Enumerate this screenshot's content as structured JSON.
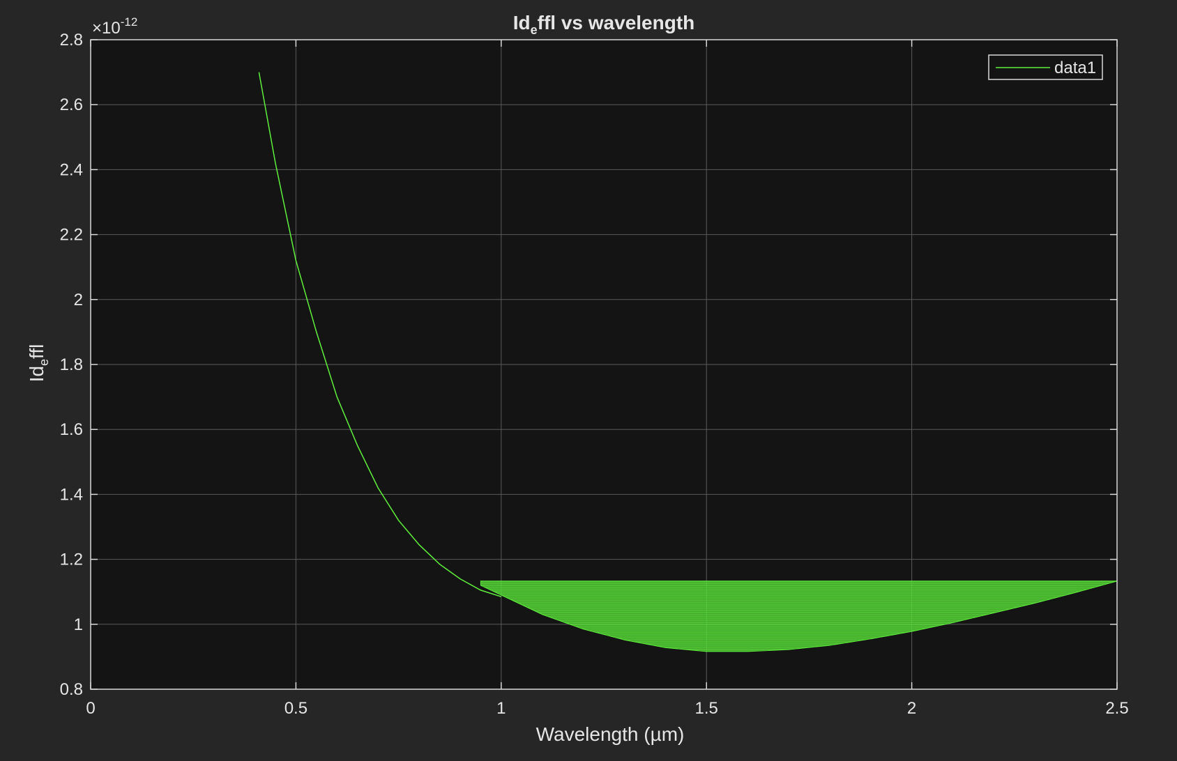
{
  "chart_data": {
    "type": "line",
    "title": {
      "pre": "Id",
      "sub": "e",
      "post": "ffl  vs  wavelength"
    },
    "xlabel": "Wavelength (µm)",
    "ylabel": {
      "pre": "Id",
      "sub": "e",
      "post": "ffl"
    },
    "exponent": {
      "base": "×10",
      "power": "-12"
    },
    "xlim": [
      0,
      2.5
    ],
    "ylim": [
      0.8,
      2.8
    ],
    "xticks": [
      "0",
      "0.5",
      "1",
      "1.5",
      "2",
      "2.5"
    ],
    "yticks": [
      "0.8",
      "1",
      "1.2",
      "1.4",
      "1.6",
      "1.8",
      "2",
      "2.2",
      "2.4",
      "2.6",
      "2.8"
    ],
    "grid": true,
    "legend": {
      "position": "top-right",
      "entries": [
        "data1"
      ]
    },
    "colors": {
      "line": "#5ff03c",
      "background": "#141414",
      "figure": "#262626",
      "axes": "#d9d9d9",
      "grid": "#5a5a5a"
    },
    "series": [
      {
        "name": "data1",
        "curve": {
          "x": [
            0.41,
            0.45,
            0.5,
            0.55,
            0.6,
            0.65,
            0.7,
            0.75,
            0.8,
            0.85,
            0.9,
            0.95,
            1.0
          ],
          "y": [
            2.7,
            2.42,
            2.12,
            1.9,
            1.7,
            1.55,
            1.42,
            1.32,
            1.245,
            1.185,
            1.14,
            1.105,
            1.085
          ]
        },
        "filled_band": {
          "x_min": 0.95,
          "x_max": 2.5,
          "upper_y": 1.133,
          "lower": {
            "x": [
              0.95,
              1.0,
              1.1,
              1.2,
              1.3,
              1.4,
              1.5,
              1.6,
              1.7,
              1.8,
              1.9,
              2.0,
              2.1,
              2.2,
              2.3,
              2.4,
              2.5
            ],
            "y": [
              1.12,
              1.09,
              1.03,
              0.985,
              0.952,
              0.928,
              0.916,
              0.916,
              0.922,
              0.935,
              0.955,
              0.978,
              1.005,
              1.035,
              1.065,
              1.098,
              1.133
            ]
          }
        }
      }
    ]
  }
}
